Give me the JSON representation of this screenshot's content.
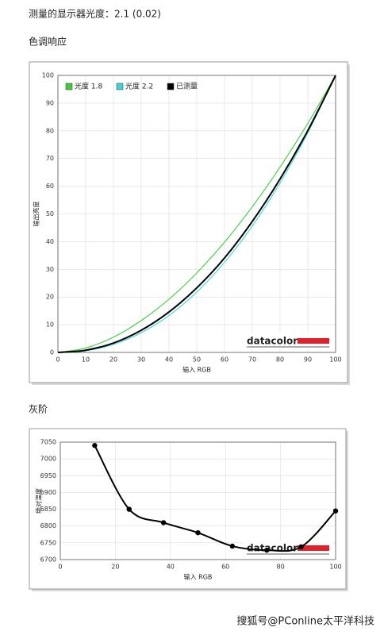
{
  "header": {
    "measured": "测量的显示器光度：2.1 (0.02)",
    "section1": "色调响应",
    "section2": "灰阶"
  },
  "watermark": "搜狐号@PConline太平洋科技",
  "chart_data": [
    {
      "type": "line",
      "xlabel": "输入 RGB",
      "ylabel": "输出亮度",
      "logo": "datacolor",
      "x": [
        0,
        10,
        20,
        30,
        40,
        50,
        60,
        70,
        80,
        90,
        100
      ],
      "series": [
        {
          "name": "光度 1.8",
          "color": "#3ccf3c",
          "values": [
            0,
            1.6,
            5.5,
            11.5,
            19.2,
            28.7,
            39.8,
            52.6,
            66.9,
            82.7,
            100
          ]
        },
        {
          "name": "光度 2.2",
          "color": "#3cd6d6",
          "values": [
            0,
            0.6,
            2.9,
            7.1,
            13.3,
            21.8,
            32.5,
            45.6,
            61.2,
            79.3,
            100
          ]
        },
        {
          "name": "已测量",
          "color": "#000000",
          "values": [
            0,
            0.8,
            3.4,
            8.0,
            14.6,
            23.3,
            34.1,
            47.3,
            62.6,
            80.1,
            100
          ]
        }
      ],
      "xlim": [
        0,
        100
      ],
      "xticks": [
        0,
        10,
        20,
        30,
        40,
        50,
        60,
        70,
        80,
        90,
        100
      ],
      "ylim": [
        0,
        100
      ],
      "yticks": [
        0,
        10,
        20,
        30,
        40,
        50,
        60,
        70,
        80,
        90,
        100
      ],
      "grid": true,
      "legend": "top-left"
    },
    {
      "type": "line",
      "xlabel": "输入 RGB",
      "ylabel": "绝对温度",
      "logo": "datacolor",
      "x": [
        12.5,
        25,
        37.5,
        50,
        62.5,
        75,
        87.5,
        100
      ],
      "series": [
        {
          "color": "#000000",
          "values": [
            7040,
            6850,
            6810,
            6780,
            6740,
            6728,
            6738,
            6845
          ]
        }
      ],
      "xlim": [
        0,
        100
      ],
      "xticks": [
        0,
        20,
        40,
        60,
        80,
        100
      ],
      "ylim": [
        6700,
        7050
      ],
      "yticks": [
        6700,
        6750,
        6800,
        6850,
        6900,
        6950,
        7000,
        7050
      ],
      "grid": true,
      "markers": true
    }
  ]
}
